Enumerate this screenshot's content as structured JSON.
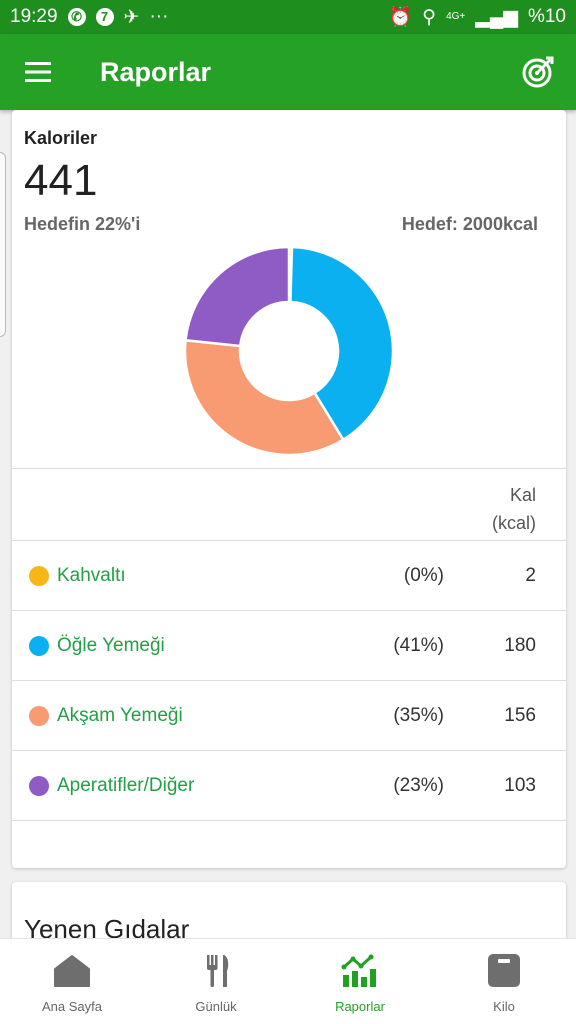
{
  "status_bar": {
    "time": "19:29",
    "left_icons": [
      "whatsapp-icon",
      "seven-notification-icon",
      "airplane-icon",
      "more-dots-icon"
    ],
    "more_dots": "···",
    "network": "4G+",
    "battery": "%10"
  },
  "app_bar": {
    "title": "Raporlar"
  },
  "calories": {
    "label": "Kaloriler",
    "value": "441",
    "goal_percent": "Hedefin 22%'i",
    "goal_total": "Hedef: 2000kcal"
  },
  "chart_data": {
    "type": "pie",
    "categories": [
      "Kahvaltı",
      "Öğle Yemeği",
      "Akşam Yemeği",
      "Aperatifler/Diğer"
    ],
    "values": [
      2,
      180,
      156,
      103
    ],
    "colors": [
      "#f6b818",
      "#0bb0f0",
      "#f89a72",
      "#8e5cc4"
    ]
  },
  "table": {
    "header_kal": "Kal",
    "header_unit": "(kcal)",
    "rows": [
      {
        "name": "Kahvaltı",
        "percent": "(0%)",
        "value": "2",
        "color": "#f6b818"
      },
      {
        "name": "Öğle Yemeği",
        "percent": "(41%)",
        "value": "180",
        "color": "#0bb0f0"
      },
      {
        "name": "Akşam Yemeği",
        "percent": "(35%)",
        "value": "156",
        "color": "#f89a72"
      },
      {
        "name": "Aperatifler/Diğer",
        "percent": "(23%)",
        "value": "103",
        "color": "#8e5cc4"
      }
    ]
  },
  "eaten_foods": {
    "title": "Yenen Gıdalar"
  },
  "bottom_nav": {
    "items": [
      {
        "label": "Ana Sayfa",
        "icon": "home-icon"
      },
      {
        "label": "Günlük",
        "icon": "fork-knife-icon"
      },
      {
        "label": "Raporlar",
        "icon": "reports-chart-icon"
      },
      {
        "label": "Kilo",
        "icon": "scale-icon"
      }
    ],
    "active": "Raporlar"
  },
  "colors": {
    "status_bar": "#1e8e1e",
    "app_bar": "#25a225",
    "accent": "#23a023"
  }
}
